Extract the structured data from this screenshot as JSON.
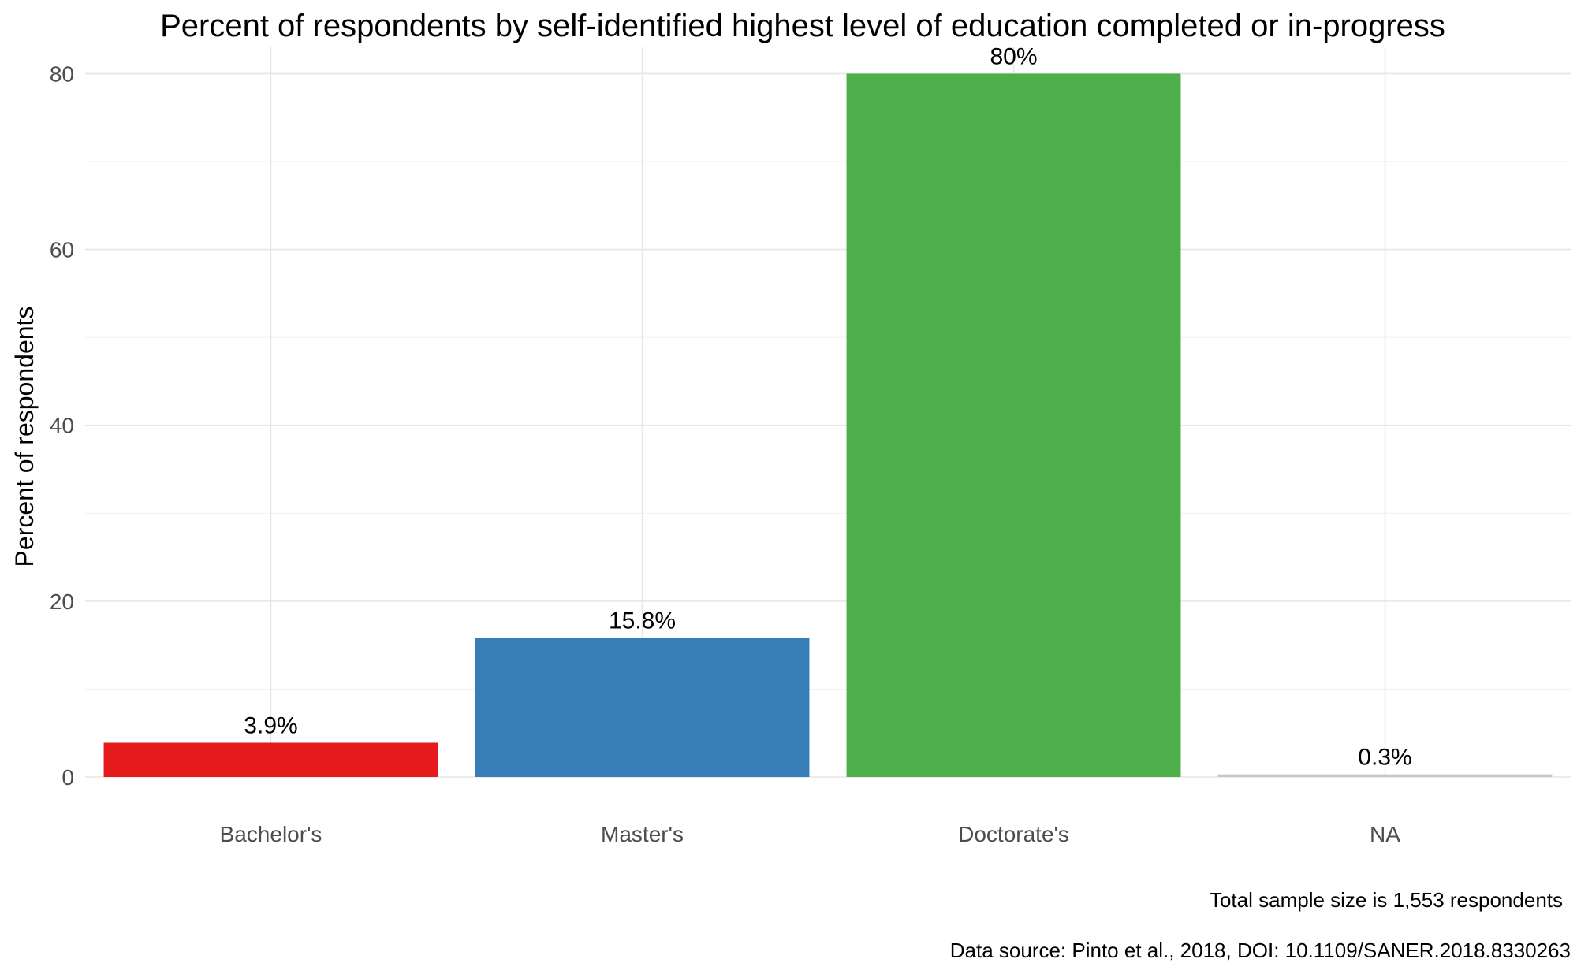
{
  "chart_data": {
    "type": "bar",
    "title": "Percent of respondents by self-identified highest level of education completed or in-progress",
    "xlabel": "",
    "ylabel": "Percent of respondents",
    "categories": [
      "Bachelor's",
      "Master's",
      "Doctorate's",
      "NA"
    ],
    "values": [
      3.9,
      15.8,
      80,
      0.3
    ],
    "data_labels": [
      "3.9%",
      "15.8%",
      "80%",
      "0.3%"
    ],
    "colors": [
      "#e41a1c",
      "#377eb8",
      "#4daf4a",
      "#c8c8c8"
    ],
    "ylim": [
      0,
      83
    ],
    "yticks": [
      0,
      20,
      40,
      60,
      80
    ],
    "grid": true,
    "legend": "none"
  },
  "captions": {
    "sample_size": "Total sample size is 1,553 respondents",
    "source": "Data source: Pinto et al., 2018, DOI: 10.1109/SANER.2018.8330263"
  }
}
